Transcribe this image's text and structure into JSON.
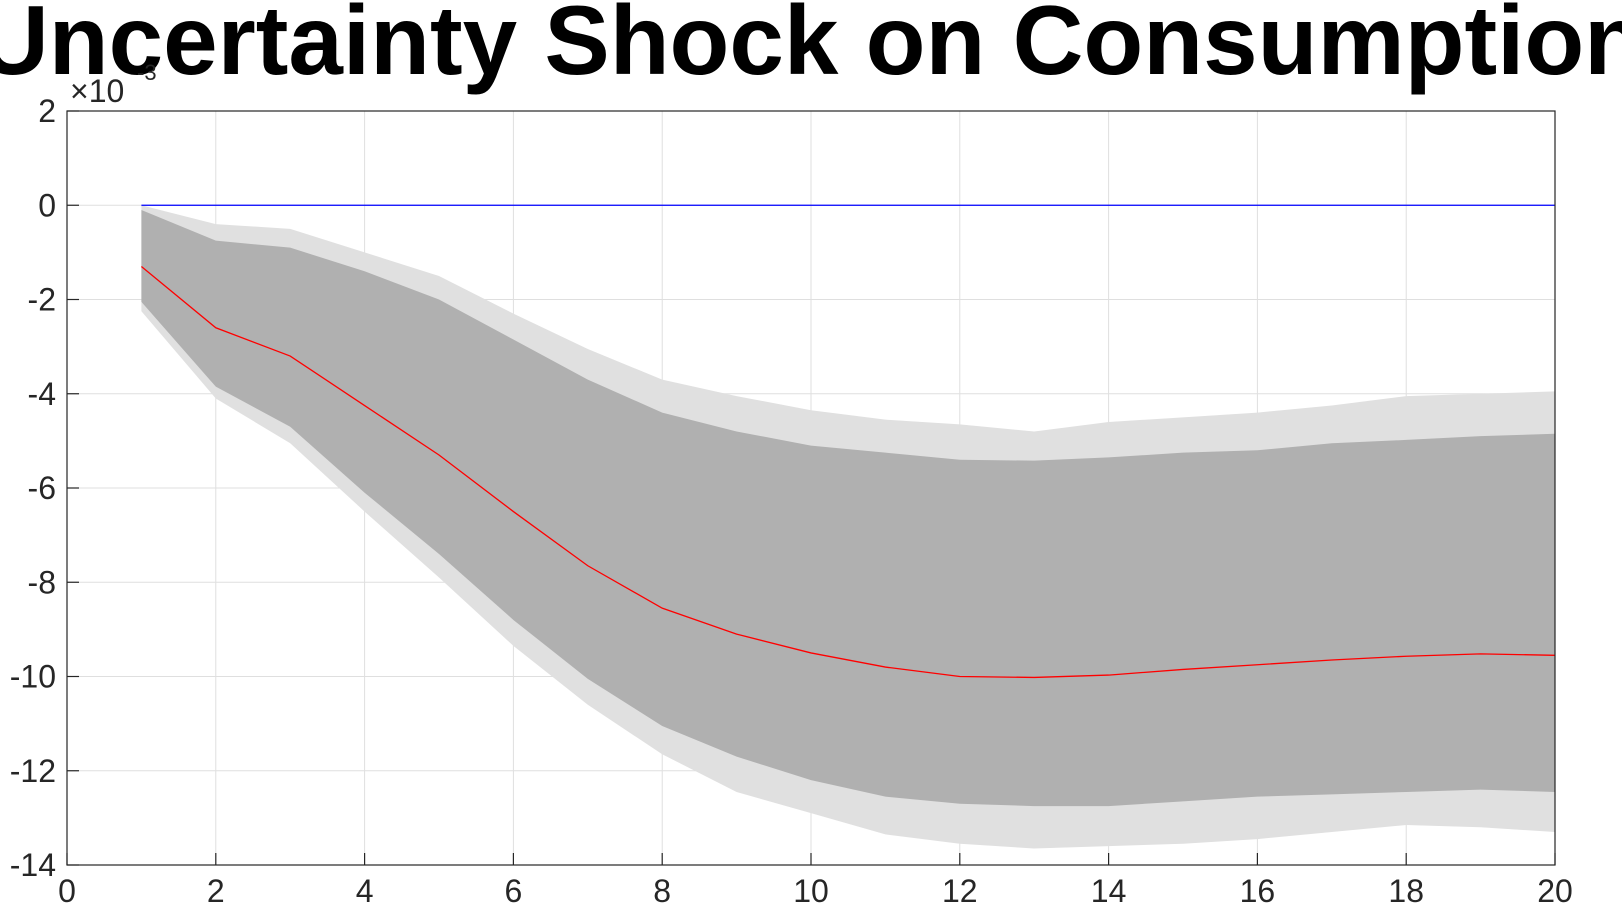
{
  "chart_data": {
    "type": "area",
    "title": "Uncertainty Shock on Consumption",
    "xlabel": "",
    "ylabel": "",
    "xlim": [
      0,
      20
    ],
    "ylim": [
      -14,
      2
    ],
    "y_scale_exponent_base": "10",
    "y_scale_exponent_power": "-3",
    "grid": true,
    "x_ticks": [
      "0",
      "2",
      "4",
      "6",
      "8",
      "10",
      "12",
      "14",
      "16",
      "18",
      "20"
    ],
    "y_ticks": [
      "2",
      "0",
      "-2",
      "-4",
      "-6",
      "-8",
      "-10",
      "-12",
      "-14"
    ],
    "x": [
      1,
      2,
      3,
      4,
      5,
      6,
      7,
      8,
      9,
      10,
      11,
      12,
      13,
      14,
      15,
      16,
      17,
      18,
      19,
      20
    ],
    "bands": [
      {
        "kind": "outer",
        "color": "#e0e0e0",
        "upper": [
          0.0,
          -0.4,
          -0.5,
          -1.0,
          -1.5,
          -2.3,
          -3.05,
          -3.7,
          -4.05,
          -4.35,
          -4.55,
          -4.65,
          -4.8,
          -4.6,
          -4.5,
          -4.4,
          -4.25,
          -4.05,
          -4.0,
          -3.95
        ],
        "lower": [
          -2.25,
          -4.1,
          -5.05,
          -6.5,
          -7.9,
          -9.35,
          -10.6,
          -11.65,
          -12.45,
          -12.9,
          -13.35,
          -13.55,
          -13.65,
          -13.6,
          -13.55,
          -13.45,
          -13.3,
          -13.15,
          -13.2,
          -13.3
        ]
      },
      {
        "kind": "inner",
        "color": "#b0b0b0",
        "upper": [
          -0.1,
          -0.75,
          -0.9,
          -1.4,
          -2.0,
          -2.85,
          -3.7,
          -4.4,
          -4.8,
          -5.1,
          -5.25,
          -5.4,
          -5.42,
          -5.35,
          -5.25,
          -5.2,
          -5.05,
          -4.98,
          -4.9,
          -4.85
        ],
        "lower": [
          -2.05,
          -3.85,
          -4.7,
          -6.1,
          -7.4,
          -8.8,
          -10.05,
          -11.05,
          -11.7,
          -12.2,
          -12.55,
          -12.7,
          -12.75,
          -12.75,
          -12.65,
          -12.55,
          -12.5,
          -12.45,
          -12.4,
          -12.45
        ]
      }
    ],
    "series": [
      {
        "color": "#ff0000",
        "values": [
          -1.3,
          -2.6,
          -3.2,
          -4.25,
          -5.3,
          -6.5,
          -7.65,
          -8.55,
          -9.1,
          -9.5,
          -9.8,
          -10.0,
          -10.02,
          -9.97,
          -9.85,
          -9.75,
          -9.65,
          -9.57,
          -9.52,
          -9.55
        ]
      },
      {
        "color": "#0000ff",
        "values": [
          0,
          0,
          0,
          0,
          0,
          0,
          0,
          0,
          0,
          0,
          0,
          0,
          0,
          0,
          0,
          0,
          0,
          0,
          0,
          0
        ]
      }
    ]
  }
}
